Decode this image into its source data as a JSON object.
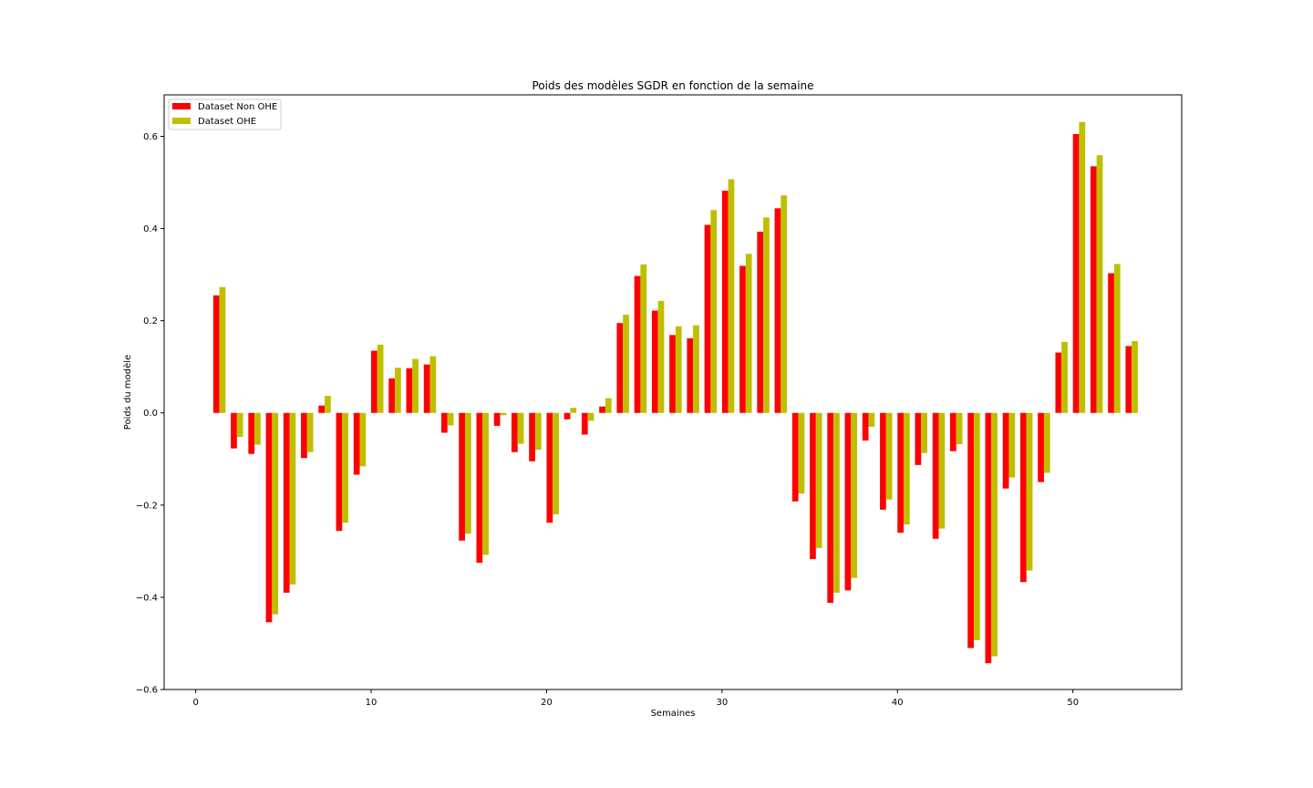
{
  "chart_data": {
    "type": "bar",
    "title": "Poids des modèles SGDR en fonction de la semaine",
    "xlabel": "Semaines",
    "ylabel": "Poids du modèle",
    "xlim": [
      -1.8,
      56.2
    ],
    "ylim": [
      -0.6,
      0.69
    ],
    "xticks": [
      0,
      10,
      20,
      30,
      40,
      50
    ],
    "yticks": [
      -0.6,
      -0.4,
      -0.2,
      0.0,
      0.2,
      0.4,
      0.6
    ],
    "bar_width": 0.35,
    "legend_position": "top-left",
    "grid": false,
    "x": [
      1,
      2,
      3,
      4,
      5,
      6,
      7,
      8,
      9,
      10,
      11,
      12,
      13,
      14,
      15,
      16,
      17,
      18,
      19,
      20,
      21,
      22,
      23,
      24,
      25,
      26,
      27,
      28,
      29,
      30,
      31,
      32,
      33,
      34,
      35,
      36,
      37,
      38,
      39,
      40,
      41,
      42,
      43,
      44,
      45,
      46,
      47,
      48,
      49,
      50,
      51,
      52,
      53
    ],
    "series": [
      {
        "name": "Dataset Non OHE",
        "color": "#ff0000",
        "values": [
          0.255,
          -0.077,
          -0.089,
          -0.454,
          -0.39,
          -0.098,
          0.016,
          -0.256,
          -0.134,
          0.135,
          0.075,
          0.097,
          0.105,
          -0.043,
          -0.277,
          -0.325,
          -0.028,
          -0.085,
          -0.105,
          -0.238,
          -0.014,
          -0.047,
          0.014,
          0.195,
          0.297,
          0.222,
          0.169,
          0.162,
          0.408,
          0.482,
          0.319,
          0.393,
          0.444,
          -0.192,
          -0.317,
          -0.412,
          -0.385,
          -0.06,
          -0.21,
          -0.26,
          -0.113,
          -0.273,
          -0.083,
          -0.51,
          -0.543,
          -0.164,
          -0.367,
          -0.15,
          0.131,
          0.605,
          0.535,
          0.303,
          0.145
        ]
      },
      {
        "name": "Dataset OHE",
        "color": "#bfbf00",
        "values": [
          0.273,
          -0.052,
          -0.069,
          -0.437,
          -0.372,
          -0.085,
          0.037,
          -0.238,
          -0.116,
          0.148,
          0.098,
          0.117,
          0.123,
          -0.027,
          -0.262,
          -0.308,
          -0.005,
          -0.067,
          -0.08,
          -0.22,
          0.011,
          -0.017,
          0.032,
          0.213,
          0.322,
          0.243,
          0.188,
          0.19,
          0.44,
          0.507,
          0.345,
          0.424,
          0.472,
          -0.175,
          -0.293,
          -0.39,
          -0.358,
          -0.03,
          -0.188,
          -0.242,
          -0.087,
          -0.251,
          -0.068,
          -0.493,
          -0.528,
          -0.14,
          -0.342,
          -0.13,
          0.154,
          0.631,
          0.559,
          0.323,
          0.156
        ]
      }
    ]
  }
}
